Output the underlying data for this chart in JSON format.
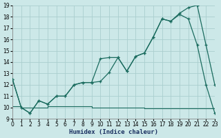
{
  "xlabel": "Humidex (Indice chaleur)",
  "xlim": [
    0,
    23
  ],
  "ylim": [
    9,
    19
  ],
  "xticks": [
    0,
    1,
    2,
    3,
    4,
    5,
    6,
    7,
    8,
    9,
    10,
    11,
    12,
    13,
    14,
    15,
    16,
    17,
    18,
    19,
    20,
    21,
    22,
    23
  ],
  "yticks": [
    9,
    10,
    11,
    12,
    13,
    14,
    15,
    16,
    17,
    18,
    19
  ],
  "bg_color": "#cce8e8",
  "line_color": "#1a6b5e",
  "grid_color": "#aacece",
  "s1_x": [
    0,
    1,
    2,
    3,
    4,
    5,
    6,
    7,
    8,
    9,
    10,
    11,
    12,
    13,
    14,
    15,
    16,
    17,
    18,
    19,
    20,
    21,
    22,
    23
  ],
  "s1_y": [
    12.5,
    10.0,
    9.5,
    10.6,
    10.3,
    11.0,
    11.0,
    12.0,
    12.2,
    12.2,
    14.3,
    14.4,
    14.4,
    13.2,
    14.5,
    14.8,
    16.2,
    17.8,
    17.6,
    18.2,
    17.8,
    15.5,
    12.0,
    9.5
  ],
  "s2_x": [
    0,
    1,
    2,
    3,
    4,
    5,
    6,
    7,
    8,
    9,
    10,
    11,
    12,
    13,
    14,
    15,
    16,
    17,
    18,
    19,
    20,
    21,
    22,
    23
  ],
  "s2_y": [
    12.5,
    10.0,
    9.5,
    10.6,
    10.3,
    11.0,
    11.0,
    12.0,
    12.2,
    12.2,
    12.3,
    13.1,
    14.4,
    13.2,
    14.5,
    14.8,
    16.2,
    17.8,
    17.6,
    18.3,
    18.8,
    19.0,
    15.5,
    12.0
  ],
  "s3_x": [
    0,
    1,
    2,
    3,
    4,
    5,
    6,
    7,
    8,
    9,
    10,
    11,
    12,
    13,
    14,
    15,
    16,
    17,
    18,
    19,
    20,
    21,
    22,
    23
  ],
  "s3_y": [
    10.1,
    10.0,
    10.0,
    10.0,
    10.1,
    10.1,
    10.1,
    10.1,
    10.1,
    10.0,
    10.0,
    10.0,
    10.0,
    10.0,
    10.0,
    9.9,
    9.9,
    9.9,
    9.9,
    9.9,
    9.9,
    9.9,
    9.9,
    9.5
  ],
  "tick_fontsize": 5.5,
  "label_fontsize": 6.5,
  "label_color": "#1a3060",
  "label_fontfamily": "monospace"
}
